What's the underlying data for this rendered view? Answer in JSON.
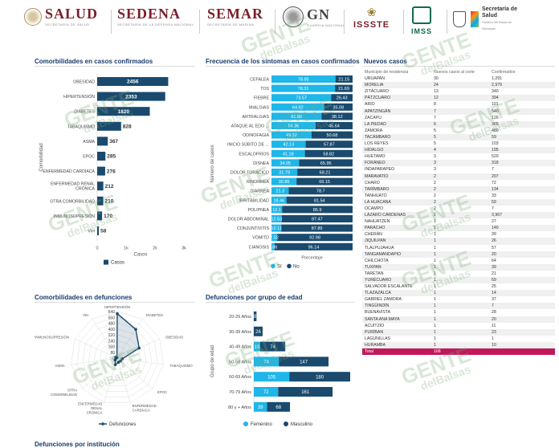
{
  "header": {
    "logos": [
      {
        "name": "SALUD",
        "sub": "SECRETARÍA DE SALUD"
      },
      {
        "name": "SEDENA",
        "sub": "SECRETARÍA DE LA DEFENSA NACIONAL"
      },
      {
        "name": "SEMAR",
        "sub": "SECRETARÍA DE MARINA"
      },
      {
        "name": "GN",
        "sub": "GUARDIA NACIONAL"
      },
      {
        "name": "ISSSTE",
        "sub": ""
      },
      {
        "name": "IMSS",
        "sub": ""
      },
      {
        "name": "Secretaría de Salud",
        "sub": "Gobierno del Estado de Michoacán"
      }
    ]
  },
  "watermark": {
    "line1": "GENTE",
    "line2": "delBalsas"
  },
  "colors": {
    "navy": "#1a4a6e",
    "cyan": "#1fb6e8",
    "title": "#1a3c6e",
    "total": "#c2185b"
  },
  "chart_data": [
    {
      "type": "bar",
      "title": "Comorbilidades en casos confirmados",
      "orientation": "horizontal",
      "ylabel": "Comorbilidad",
      "xlabel": "Casos",
      "legend": [
        "Casos"
      ],
      "xlim": [
        0,
        3000
      ],
      "xticks": [
        "0",
        "1k",
        "2k",
        "3k"
      ],
      "categories": [
        "OBESIDAD",
        "HIPERTENSIÓN",
        "DIABETES",
        "TABAQUISMO",
        "ASMA",
        "EPOC",
        "ENFERMEDAD CARDÍACA",
        "ENFERMEDAD RENAL CRÓNICA",
        "OTRA COMORBILIDAD",
        "INMUNOSUPRESIÓN",
        "VIH"
      ],
      "values": [
        2456,
        2353,
        1820,
        828,
        367,
        285,
        276,
        212,
        210,
        170,
        58
      ],
      "labels": [
        "2456",
        "2353",
        "1820",
        "828",
        "367",
        "285",
        "276",
        "212",
        "210",
        "170",
        "58"
      ]
    },
    {
      "type": "bar",
      "title": "Frecuencia de los síntomas en casos confirmados",
      "orientation": "horizontal-stacked-100",
      "ylabel": "Número de casos",
      "xlabel": "Porcentaje",
      "categories": [
        "CEFALEA",
        "TOS",
        "FIEBRE",
        "MIALGIAS",
        "ARTRALGIAS",
        "ATAQUE AL EDO ...",
        "ODINOFAGIA",
        "INICIO SÚBITO DE ...",
        "ESCALOFRÍOS",
        "DISNEA",
        "DOLOR TORÁCICO",
        "RINORREA",
        "DIARREA",
        "IRRITABILIDAD",
        "POLIPNEA",
        "DOLOR ABDOMINAL",
        "CONJUNTIVITIS",
        "VÓMITO",
        "CIANOSIS"
      ],
      "series": [
        {
          "name": "Sí",
          "values": [
            78.85,
            78.31,
            73.57,
            64.92,
            61.88,
            54.36,
            49.32,
            42.13,
            41.18,
            34.05,
            31.79,
            30.85,
            21.3,
            18.46,
            13.1,
            12.53,
            12.11,
            7.02,
            3.86
          ]
        },
        {
          "name": "No",
          "values": [
            21.15,
            21.69,
            26.43,
            35.08,
            38.12,
            45.64,
            50.68,
            57.87,
            58.82,
            65.95,
            68.21,
            69.15,
            78.7,
            81.54,
            86.9,
            87.47,
            87.89,
            92.98,
            96.14
          ]
        }
      ]
    },
    {
      "type": "radar",
      "title": "Comorbilidades en defunciones",
      "axes": [
        "HIPERTENSIÓN",
        "DIABETES",
        "OBESIDAD",
        "TABAQUISMO",
        "EPOC",
        "ENFERMEDAD CARDÍACA",
        "ENFERMEDAD RENAL CRÓNICA",
        "OTRA COMORBILIDAD",
        "ASMA",
        "INMUNOSUPRESIÓN",
        "VIH"
      ],
      "ticks": [
        "0",
        "80",
        "160",
        "240",
        "320",
        "400",
        "480",
        "560",
        "640"
      ],
      "rmax": 640,
      "legend": [
        "Defunciones"
      ],
      "values": [
        610,
        470,
        330,
        70,
        60,
        60,
        95,
        40,
        18,
        25,
        8
      ]
    },
    {
      "type": "bar",
      "title": "Defunciones por grupo de edad",
      "orientation": "horizontal-stacked",
      "ylabel": "Grupo de edad",
      "categories": [
        "20-29 Años",
        "30-39 Años",
        "40-49 Años",
        "50-59 Años",
        "60-69 Años",
        "70-79 Años",
        "80 y + Años"
      ],
      "series": [
        {
          "name": "Femenino",
          "values": [
            0,
            0,
            19,
            74,
            105,
            72,
            39
          ]
        },
        {
          "name": "Masculino",
          "values": [
            8,
            26,
            74,
            147,
            180,
            161,
            68
          ]
        }
      ]
    }
  ],
  "table": {
    "title": "Nuevos casos",
    "headers": [
      "Municipio de residencia",
      "Nuevos casos al corte",
      "Confirmados"
    ],
    "rows": [
      [
        "URUAPAN",
        "30",
        "1,291"
      ],
      [
        "MORELIA",
        "24",
        "2,979"
      ],
      [
        "ZITÁCUARO",
        "13",
        "340"
      ],
      [
        "PÁTZCUARO",
        "12",
        "394"
      ],
      [
        "ARIO",
        "8",
        "101"
      ],
      [
        "APATZINGÁN",
        "7",
        "540"
      ],
      [
        "ZACAPU",
        "7",
        "126"
      ],
      [
        "LA PIEDAD",
        "6",
        "365"
      ],
      [
        "ZAMORA",
        "5",
        "480"
      ],
      [
        "TACÁMBARO",
        "5",
        "59"
      ],
      [
        "LOS REYES",
        "5",
        "103"
      ],
      [
        "HIDALGO",
        "4",
        "195"
      ],
      [
        "HUETAMO",
        "3",
        "520"
      ],
      [
        "FORÁNEO",
        "3",
        "318"
      ],
      [
        "INDAPARAPEO",
        "3",
        "7"
      ],
      [
        "MARAVATÍO",
        "2",
        "207"
      ],
      [
        "CHARO",
        "2",
        "72"
      ],
      [
        "TARÍMBARO",
        "2",
        "134"
      ],
      [
        "TANHUATO",
        "2",
        "33"
      ],
      [
        "LA HUACANA",
        "2",
        "59"
      ],
      [
        "OCAMPO",
        "2",
        "7"
      ],
      [
        "LÁZARO CÁRDENAS",
        "1",
        "3,967"
      ],
      [
        "NAHUATZEN",
        "1",
        "27"
      ],
      [
        "PARACHO",
        "1",
        "140"
      ],
      [
        "CHERÁN",
        "1",
        "39"
      ],
      [
        "JIQUILPAN",
        "1",
        "26"
      ],
      [
        "TLALPUJAHUA",
        "1",
        "57"
      ],
      [
        "TANGAMANDAPIO",
        "1",
        "20"
      ],
      [
        "CHILCHOTA",
        "1",
        "64"
      ],
      [
        "TUXPAN",
        "1",
        "39"
      ],
      [
        "TARETAN",
        "1",
        "21"
      ],
      [
        "YURÉCUARO",
        "1",
        "69"
      ],
      [
        "SALVADOR ESCALANTE",
        "1",
        "25"
      ],
      [
        "TLAZAZALCA",
        "1",
        "14"
      ],
      [
        "GABRIEL ZAMORA",
        "1",
        "37"
      ],
      [
        "TINGÜINDÍN",
        "1",
        "7"
      ],
      [
        "BUENAVISTA",
        "1",
        "28"
      ],
      [
        "SANTA ANA MAYA",
        "1",
        "20"
      ],
      [
        "ACUITZIO",
        "1",
        "11"
      ],
      [
        "PURÍBAN",
        "1",
        "23"
      ],
      [
        "LAGUNILLAS",
        "1",
        "1"
      ],
      [
        "HURAMBA",
        "1",
        "10"
      ]
    ],
    "total_label": "Total",
    "total_new": "168"
  },
  "footer": {
    "next_section": "Defunciones por institución"
  }
}
